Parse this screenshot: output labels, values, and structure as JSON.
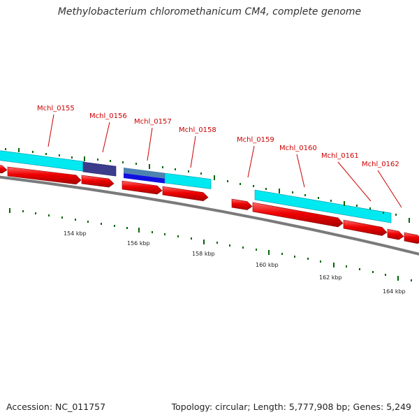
{
  "title": "Methylobacterium chloromethanicum CM4, complete genome",
  "footer": {
    "accession": "Accession: NC_011757",
    "summary": "Topology: circular; Length: 5,777,908 bp; Genes: 5,249"
  },
  "colors": {
    "cds": "#ff0000",
    "feature_cyan": "#00e8f0",
    "feature_indigo": "#3c3c8c",
    "feature_blue": "#1010e0",
    "tick": "#006600",
    "backbone": "#7a7a7a",
    "label": "#cc0000"
  },
  "genes": [
    {
      "name": "Mchl_0155"
    },
    {
      "name": "Mchl_0156"
    },
    {
      "name": "Mchl_0157"
    },
    {
      "name": "Mchl_0158"
    },
    {
      "name": "Mchl_0159"
    },
    {
      "name": "Mchl_0160"
    },
    {
      "name": "Mchl_0161"
    },
    {
      "name": "Mchl_0162"
    }
  ],
  "scale_labels": [
    "154 kbp",
    "156 kbp",
    "158 kbp",
    "160 kbp",
    "162 kbp",
    "164 kbp"
  ]
}
